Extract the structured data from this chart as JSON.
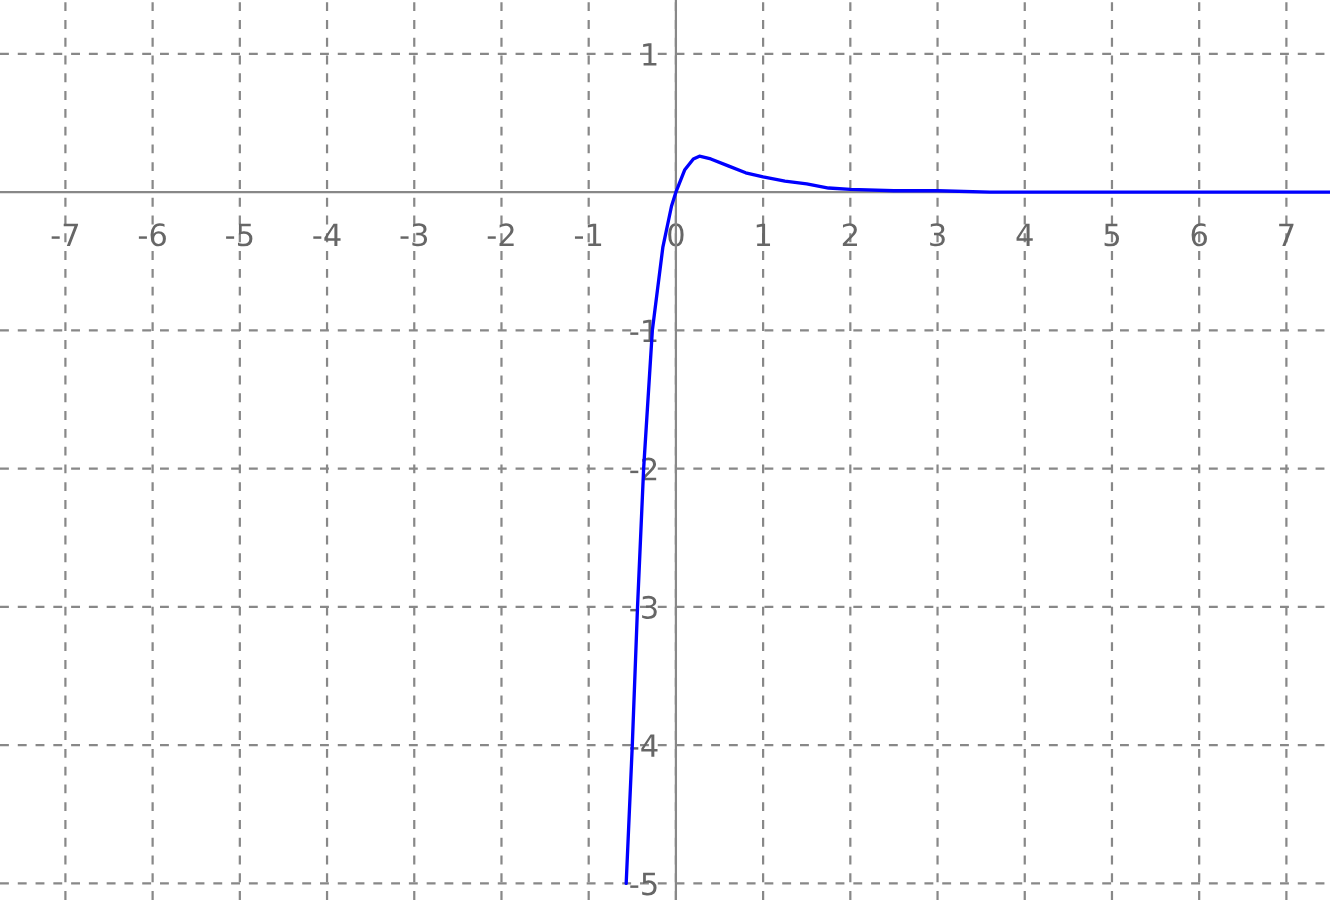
{
  "chart_data": {
    "type": "line",
    "xlim": [
      -7.75,
      7.5
    ],
    "ylim": [
      -5.12,
      1.39
    ],
    "xticks": [
      -7,
      -6,
      -5,
      -4,
      -3,
      -2,
      -1,
      0,
      1,
      2,
      3,
      4,
      5,
      6,
      7
    ],
    "yticks": [
      -5,
      -4,
      -3,
      -2,
      -1,
      1
    ],
    "grid": true,
    "line_style": "solid",
    "marker": "none",
    "series": [
      {
        "color": "#0000ff",
        "x": [
          -0.57,
          -0.5,
          -0.44,
          -0.37,
          -0.27,
          -0.15,
          -0.05,
          0,
          0.1,
          0.2,
          0.27,
          0.4,
          0.6,
          0.8,
          1,
          1.25,
          1.5,
          1.75,
          2,
          2.5,
          3,
          3.6,
          4.5,
          5.5,
          6.5,
          7.5
        ],
        "values": [
          -5.0,
          -4.0,
          -3.0,
          -2.0,
          -1.0,
          -0.4,
          -0.1,
          0,
          0.16,
          0.24,
          0.26,
          0.24,
          0.19,
          0.14,
          0.11,
          0.08,
          0.06,
          0.03,
          0.02,
          0.01,
          0.01,
          0,
          0,
          0,
          0,
          0
        ]
      }
    ]
  }
}
